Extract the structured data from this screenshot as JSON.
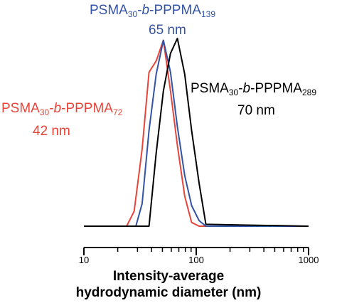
{
  "chart_data": {
    "type": "line",
    "title": "",
    "xlabel_line1": "Intensity-average",
    "xlabel_line2": "hydrodynamic diameter (nm)",
    "ylabel": "",
    "x_scale": "log",
    "xlim": [
      10,
      1000
    ],
    "ylim": [
      0,
      1
    ],
    "x_ticks": [
      10,
      100,
      1000
    ],
    "x_tick_labels": [
      "10",
      "100",
      "1000"
    ],
    "grid": false,
    "legend": "none",
    "series": [
      {
        "name": "PSMA30-b-PPPMA72",
        "label_parts": {
          "base": "PSMA",
          "sub1": "30",
          "mid": "-",
          "italic": "b",
          "mid2": "-PPPMA",
          "sub2": "72"
        },
        "size_label": "42 nm",
        "color": "#e8443a",
        "x": [
          10,
          24,
          28,
          33,
          38,
          44,
          51,
          59,
          68,
          79,
          91,
          106,
          1000
        ],
        "y": [
          0,
          0,
          0.08,
          0.41,
          0.82,
          0.88,
          0.99,
          0.72,
          0.43,
          0.16,
          0.02,
          0,
          0
        ]
      },
      {
        "name": "PSMA30-b-PPPMA139",
        "label_parts": {
          "base": "PSMA",
          "sub1": "30",
          "mid": "-",
          "italic": "b",
          "mid2": "-PPPMA",
          "sub2": "139"
        },
        "size_label": "65 nm",
        "color": "#3553a6",
        "x": [
          10,
          29,
          33,
          38,
          44,
          51,
          59,
          68,
          79,
          91,
          106,
          122,
          1000
        ],
        "y": [
          0,
          0,
          0.12,
          0.51,
          0.81,
          0.99,
          0.82,
          0.53,
          0.27,
          0.11,
          0.03,
          0,
          0
        ]
      },
      {
        "name": "PSMA30-b-PPPMA289",
        "label_parts": {
          "base": "PSMA",
          "sub1": "30",
          "mid": "-",
          "italic": "b",
          "mid2": "-PPPMA",
          "sub2": "289"
        },
        "size_label": "70 nm",
        "color": "#000000",
        "x": [
          10,
          38,
          44,
          51,
          59,
          68,
          79,
          91,
          106,
          122,
          1000
        ],
        "y": [
          0,
          0,
          0.39,
          0.72,
          0.92,
          1.0,
          0.81,
          0.51,
          0.23,
          0.01,
          0
        ]
      }
    ]
  }
}
